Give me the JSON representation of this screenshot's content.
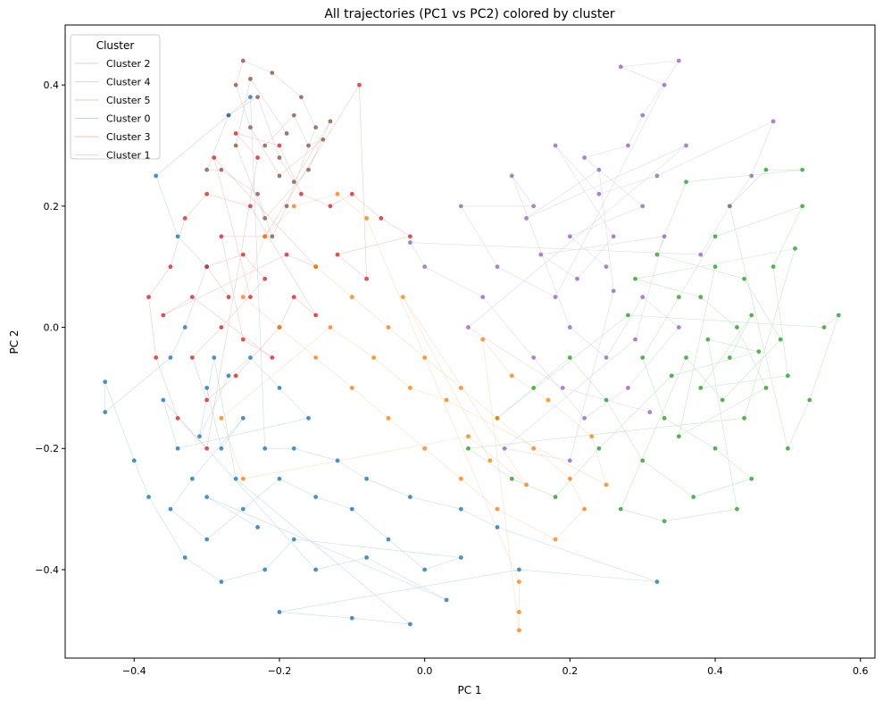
{
  "chart_data": {
    "type": "scatter",
    "title": "All trajectories (PC1 vs PC2) colored by cluster",
    "xlabel": "PC 1",
    "ylabel": "PC 2",
    "xlim": [
      -0.495,
      0.62
    ],
    "ylim": [
      -0.546,
      0.499
    ],
    "xticks": [
      -0.4,
      -0.2,
      0.0,
      0.2,
      0.4,
      0.6
    ],
    "xtick_labels": [
      "−0.4",
      "−0.2",
      "0.0",
      "0.2",
      "0.4",
      "0.6"
    ],
    "yticks": [
      -0.4,
      -0.2,
      0.0,
      0.2,
      0.4
    ],
    "ytick_labels": [
      "−0.4",
      "−0.2",
      "0.0",
      "0.2",
      "0.4"
    ],
    "grid": false,
    "legend": {
      "title": "Cluster",
      "placement": "top-left",
      "entries": [
        "Cluster 2",
        "Cluster 4",
        "Cluster 5",
        "Cluster 0",
        "Cluster 3",
        "Cluster 1"
      ]
    },
    "series": [
      {
        "name": "Cluster 2",
        "color": "#2ca02c",
        "points": [
          [
            0.42,
            -0.05
          ],
          [
            0.45,
            0.02
          ],
          [
            0.38,
            -0.1
          ],
          [
            0.5,
            -0.08
          ],
          [
            0.48,
            0.1
          ],
          [
            0.52,
            0.2
          ],
          [
            0.4,
            0.15
          ],
          [
            0.35,
            0.05
          ],
          [
            0.3,
            -0.05
          ],
          [
            0.33,
            -0.15
          ],
          [
            0.4,
            -0.2
          ],
          [
            0.45,
            -0.25
          ],
          [
            0.37,
            -0.28
          ],
          [
            0.3,
            -0.22
          ],
          [
            0.25,
            -0.12
          ],
          [
            0.2,
            -0.05
          ],
          [
            0.15,
            -0.1
          ],
          [
            0.1,
            -0.15
          ],
          [
            0.28,
            0.02
          ],
          [
            0.55,
            0.0
          ],
          [
            0.57,
            0.02
          ],
          [
            0.53,
            -0.12
          ],
          [
            0.5,
            -0.2
          ],
          [
            0.42,
            0.2
          ],
          [
            0.47,
            0.26
          ],
          [
            0.52,
            0.26
          ],
          [
            0.36,
            0.24
          ],
          [
            0.32,
            0.12
          ],
          [
            0.44,
            0.08
          ],
          [
            0.49,
            -0.02
          ],
          [
            0.41,
            -0.12
          ],
          [
            0.36,
            -0.05
          ],
          [
            0.27,
            -0.3
          ],
          [
            0.33,
            -0.32
          ],
          [
            0.43,
            -0.3
          ],
          [
            0.39,
            -0.02
          ],
          [
            0.46,
            -0.04
          ],
          [
            0.34,
            -0.08
          ],
          [
            0.24,
            -0.2
          ],
          [
            0.18,
            -0.28
          ],
          [
            0.12,
            -0.25
          ],
          [
            0.06,
            -0.2
          ],
          [
            0.44,
            -0.15
          ],
          [
            0.51,
            0.13
          ],
          [
            0.29,
            0.08
          ],
          [
            0.38,
            0.05
          ],
          [
            0.43,
            0.0
          ],
          [
            0.47,
            -0.1
          ],
          [
            0.35,
            -0.18
          ],
          [
            0.4,
            0.1
          ]
        ]
      },
      {
        "name": "Cluster 4",
        "color": "#9467bd",
        "points": [
          [
            0.25,
            0.1
          ],
          [
            0.2,
            0.15
          ],
          [
            0.3,
            0.2
          ],
          [
            0.22,
            0.28
          ],
          [
            0.28,
            0.3
          ],
          [
            0.3,
            0.35
          ],
          [
            0.35,
            0.44
          ],
          [
            0.27,
            0.43
          ],
          [
            0.33,
            0.4
          ],
          [
            0.18,
            0.05
          ],
          [
            0.1,
            0.1
          ],
          [
            0.05,
            0.2
          ],
          [
            0.15,
            0.2
          ],
          [
            0.12,
            0.25
          ],
          [
            0.2,
            0.0
          ],
          [
            0.25,
            -0.05
          ],
          [
            0.3,
            0.05
          ],
          [
            0.35,
            0.0
          ],
          [
            0.28,
            -0.1
          ],
          [
            0.22,
            -0.15
          ],
          [
            0.15,
            -0.05
          ],
          [
            0.08,
            0.05
          ],
          [
            0.0,
            0.1
          ],
          [
            -0.02,
            0.14
          ],
          [
            0.38,
            0.12
          ],
          [
            0.42,
            0.2
          ],
          [
            0.45,
            0.25
          ],
          [
            0.48,
            0.34
          ],
          [
            0.32,
            0.25
          ],
          [
            0.24,
            0.22
          ],
          [
            0.18,
            0.3
          ],
          [
            0.26,
            0.15
          ],
          [
            0.21,
            0.08
          ],
          [
            0.16,
            0.12
          ],
          [
            0.33,
            0.15
          ],
          [
            0.29,
            -0.02
          ],
          [
            0.11,
            -0.2
          ],
          [
            0.2,
            -0.22
          ],
          [
            0.26,
            0.06
          ],
          [
            0.24,
            0.26
          ],
          [
            0.14,
            0.18
          ],
          [
            0.36,
            0.3
          ],
          [
            0.06,
            0.0
          ],
          [
            0.19,
            -0.1
          ],
          [
            0.31,
            -0.14
          ]
        ]
      },
      {
        "name": "Cluster 5",
        "color": "#8c564b",
        "points": [
          [
            -0.22,
            0.3
          ],
          [
            -0.18,
            0.35
          ],
          [
            -0.16,
            0.3
          ],
          [
            -0.14,
            0.31
          ],
          [
            -0.2,
            0.25
          ],
          [
            -0.24,
            0.33
          ],
          [
            -0.26,
            0.4
          ],
          [
            -0.25,
            0.44
          ],
          [
            -0.21,
            0.42
          ],
          [
            -0.17,
            0.38
          ],
          [
            -0.15,
            0.33
          ],
          [
            -0.19,
            0.2
          ],
          [
            -0.21,
            0.15
          ],
          [
            -0.23,
            0.22
          ],
          [
            -0.28,
            0.26
          ],
          [
            -0.3,
            0.26
          ],
          [
            -0.27,
            0.35
          ],
          [
            -0.23,
            0.38
          ],
          [
            -0.2,
            0.28
          ],
          [
            -0.18,
            0.24
          ],
          [
            -0.13,
            0.34
          ],
          [
            -0.16,
            0.26
          ],
          [
            -0.22,
            0.18
          ],
          [
            -0.26,
            0.3
          ],
          [
            -0.24,
            0.41
          ],
          [
            -0.19,
            0.32
          ]
        ]
      },
      {
        "name": "Cluster 0",
        "color": "#1f77b4",
        "points": [
          [
            -0.3,
            -0.1
          ],
          [
            -0.28,
            -0.2
          ],
          [
            -0.25,
            -0.15
          ],
          [
            -0.32,
            -0.25
          ],
          [
            -0.35,
            -0.3
          ],
          [
            -0.3,
            -0.35
          ],
          [
            -0.25,
            -0.3
          ],
          [
            -0.2,
            -0.25
          ],
          [
            -0.15,
            -0.28
          ],
          [
            -0.1,
            -0.3
          ],
          [
            -0.05,
            -0.35
          ],
          [
            0.0,
            -0.4
          ],
          [
            0.05,
            -0.38
          ],
          [
            -0.18,
            -0.35
          ],
          [
            -0.22,
            -0.4
          ],
          [
            -0.28,
            -0.42
          ],
          [
            -0.33,
            -0.38
          ],
          [
            -0.38,
            -0.28
          ],
          [
            -0.4,
            -0.22
          ],
          [
            -0.44,
            -0.09
          ],
          [
            -0.44,
            -0.14
          ],
          [
            -0.35,
            -0.05
          ],
          [
            -0.33,
            0.0
          ],
          [
            -0.3,
            0.1
          ],
          [
            -0.34,
            0.15
          ],
          [
            -0.37,
            0.25
          ],
          [
            -0.27,
            0.35
          ],
          [
            -0.24,
            0.38
          ],
          [
            -0.22,
            -0.2
          ],
          [
            -0.18,
            -0.2
          ],
          [
            -0.12,
            -0.22
          ],
          [
            -0.08,
            -0.25
          ],
          [
            -0.02,
            -0.28
          ],
          [
            0.05,
            -0.3
          ],
          [
            0.1,
            -0.33
          ],
          [
            0.32,
            -0.42
          ],
          [
            0.13,
            -0.4
          ],
          [
            -0.2,
            -0.47
          ],
          [
            -0.1,
            -0.48
          ],
          [
            -0.02,
            -0.49
          ],
          [
            -0.26,
            -0.25
          ],
          [
            -0.29,
            -0.05
          ],
          [
            -0.31,
            -0.18
          ],
          [
            -0.27,
            -0.08
          ],
          [
            -0.24,
            -0.05
          ],
          [
            -0.2,
            -0.1
          ],
          [
            -0.16,
            -0.15
          ],
          [
            -0.34,
            -0.2
          ],
          [
            -0.36,
            -0.12
          ],
          [
            -0.15,
            -0.4
          ],
          [
            -0.08,
            -0.38
          ],
          [
            0.03,
            -0.45
          ],
          [
            -0.3,
            -0.28
          ],
          [
            -0.23,
            -0.33
          ]
        ]
      },
      {
        "name": "Cluster 3",
        "color": "#d62728",
        "points": [
          [
            -0.27,
            0.05
          ],
          [
            -0.3,
            0.1
          ],
          [
            -0.25,
            0.12
          ],
          [
            -0.22,
            0.08
          ],
          [
            -0.28,
            0.0
          ],
          [
            -0.32,
            -0.05
          ],
          [
            -0.3,
            -0.12
          ],
          [
            -0.26,
            -0.08
          ],
          [
            -0.2,
            0.0
          ],
          [
            -0.18,
            0.05
          ],
          [
            -0.15,
            0.02
          ],
          [
            -0.24,
            0.2
          ],
          [
            -0.3,
            0.22
          ],
          [
            -0.33,
            0.18
          ],
          [
            -0.35,
            0.1
          ],
          [
            -0.38,
            0.05
          ],
          [
            -0.37,
            -0.05
          ],
          [
            -0.34,
            -0.15
          ],
          [
            -0.3,
            -0.2
          ],
          [
            -0.23,
            0.28
          ],
          [
            -0.26,
            0.32
          ],
          [
            -0.2,
            0.3
          ],
          [
            -0.17,
            0.22
          ],
          [
            -0.13,
            0.2
          ],
          [
            -0.1,
            0.22
          ],
          [
            -0.06,
            0.18
          ],
          [
            -0.02,
            0.15
          ],
          [
            -0.12,
            0.12
          ],
          [
            -0.08,
            0.08
          ],
          [
            -0.09,
            0.4
          ],
          [
            -0.22,
            0.15
          ],
          [
            -0.28,
            0.15
          ],
          [
            -0.25,
            -0.02
          ],
          [
            -0.21,
            -0.05
          ],
          [
            -0.32,
            0.05
          ],
          [
            -0.36,
            0.02
          ],
          [
            -0.19,
            0.12
          ],
          [
            -0.15,
            0.1
          ],
          [
            -0.29,
            0.28
          ],
          [
            -0.24,
            0.05
          ]
        ]
      },
      {
        "name": "Cluster 1",
        "color": "#ff7f0e",
        "points": [
          [
            -0.15,
            0.1
          ],
          [
            -0.1,
            0.05
          ],
          [
            -0.05,
            0.0
          ],
          [
            0.0,
            -0.05
          ],
          [
            0.05,
            -0.1
          ],
          [
            0.1,
            -0.15
          ],
          [
            0.15,
            -0.2
          ],
          [
            0.2,
            -0.25
          ],
          [
            0.22,
            -0.3
          ],
          [
            0.18,
            -0.35
          ],
          [
            0.1,
            -0.3
          ],
          [
            0.05,
            -0.25
          ],
          [
            0.0,
            -0.2
          ],
          [
            -0.05,
            -0.15
          ],
          [
            -0.1,
            -0.1
          ],
          [
            -0.15,
            -0.05
          ],
          [
            -0.2,
            0.0
          ],
          [
            -0.25,
            0.05
          ],
          [
            -0.22,
            0.15
          ],
          [
            -0.18,
            0.2
          ],
          [
            -0.12,
            0.22
          ],
          [
            -0.08,
            0.18
          ],
          [
            0.13,
            -0.42
          ],
          [
            0.13,
            -0.47
          ],
          [
            0.13,
            -0.5
          ],
          [
            0.08,
            -0.02
          ],
          [
            0.12,
            -0.08
          ],
          [
            0.17,
            -0.12
          ],
          [
            0.23,
            -0.18
          ],
          [
            0.25,
            -0.26
          ],
          [
            0.03,
            -0.12
          ],
          [
            -0.02,
            -0.1
          ],
          [
            -0.07,
            -0.05
          ],
          [
            -0.13,
            0.0
          ],
          [
            -0.28,
            -0.15
          ],
          [
            -0.25,
            -0.25
          ],
          [
            0.06,
            -0.18
          ],
          [
            0.14,
            -0.26
          ],
          [
            -0.03,
            0.05
          ],
          [
            0.09,
            -0.22
          ]
        ]
      }
    ]
  }
}
